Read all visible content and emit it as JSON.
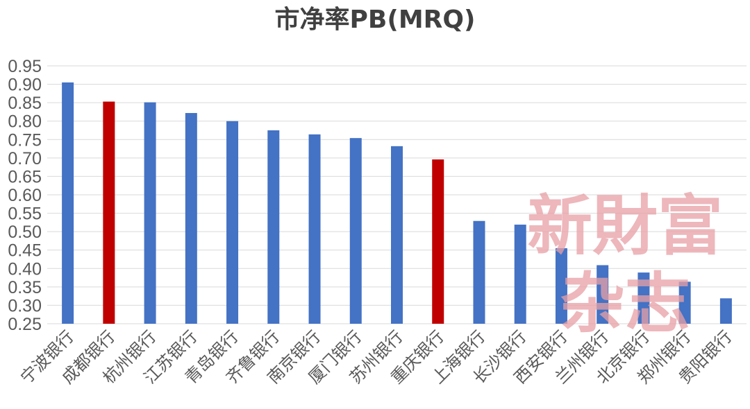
{
  "chart_data": {
    "type": "bar",
    "title": "市净率PB(MRQ)",
    "xlabel": "",
    "ylabel": "",
    "ylim": [
      0.25,
      0.95
    ],
    "ytick_step": 0.05,
    "grid": true,
    "categories": [
      "宁波银行",
      "成都银行",
      "杭州银行",
      "江苏银行",
      "青岛银行",
      "齐鲁银行",
      "南京银行",
      "厦门银行",
      "苏州银行",
      "重庆银行",
      "上海银行",
      "长沙银行",
      "西安银行",
      "兰州银行",
      "北京银行",
      "郑州银行",
      "贵阳银行"
    ],
    "values": [
      0.905,
      0.853,
      0.851,
      0.822,
      0.8,
      0.775,
      0.764,
      0.754,
      0.732,
      0.696,
      0.529,
      0.519,
      0.455,
      0.409,
      0.389,
      0.364,
      0.319
    ],
    "highlight": [
      "成都银行",
      "重庆银行"
    ],
    "colors": {
      "default": "#4472C4",
      "highlight": "#C00000",
      "grid": "#D9D9D9"
    }
  },
  "watermark": {
    "line1": "新財富",
    "line2": "杂志"
  }
}
